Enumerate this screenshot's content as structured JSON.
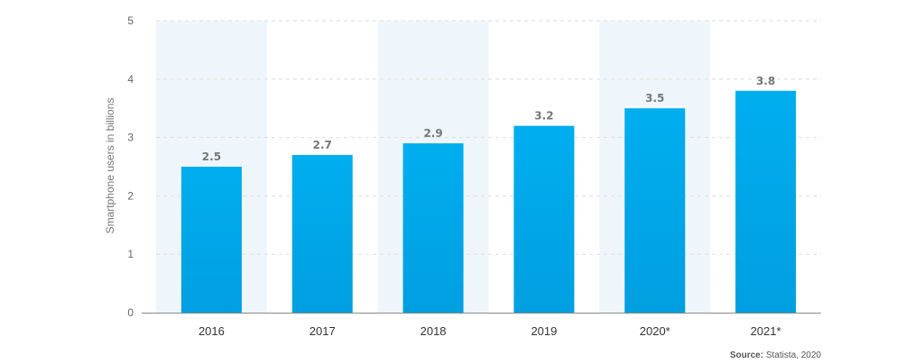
{
  "chart_data": {
    "type": "bar",
    "categories": [
      "2016",
      "2017",
      "2018",
      "2019",
      "2020*",
      "2021*"
    ],
    "values": [
      2.5,
      2.7,
      2.9,
      3.2,
      3.5,
      3.8
    ],
    "data_labels": [
      "2.5",
      "2.7",
      "2.9",
      "3.2",
      "3.5",
      "3.8"
    ],
    "title": "",
    "xlabel": "",
    "ylabel": "Smartphone users in billions",
    "ylim": [
      0,
      5
    ],
    "yticks": [
      "0",
      "1",
      "2",
      "3",
      "4",
      "5"
    ],
    "grid": true,
    "alternating_bands": true,
    "colors": {
      "bar_top": "#00AEEF",
      "bar_bottom": "#009FE0",
      "band": "#EEF6FB",
      "grid": "#DDDDDD",
      "axis": "#888888"
    }
  },
  "source": {
    "label": "Source:",
    "text": "Statista, 2020"
  }
}
